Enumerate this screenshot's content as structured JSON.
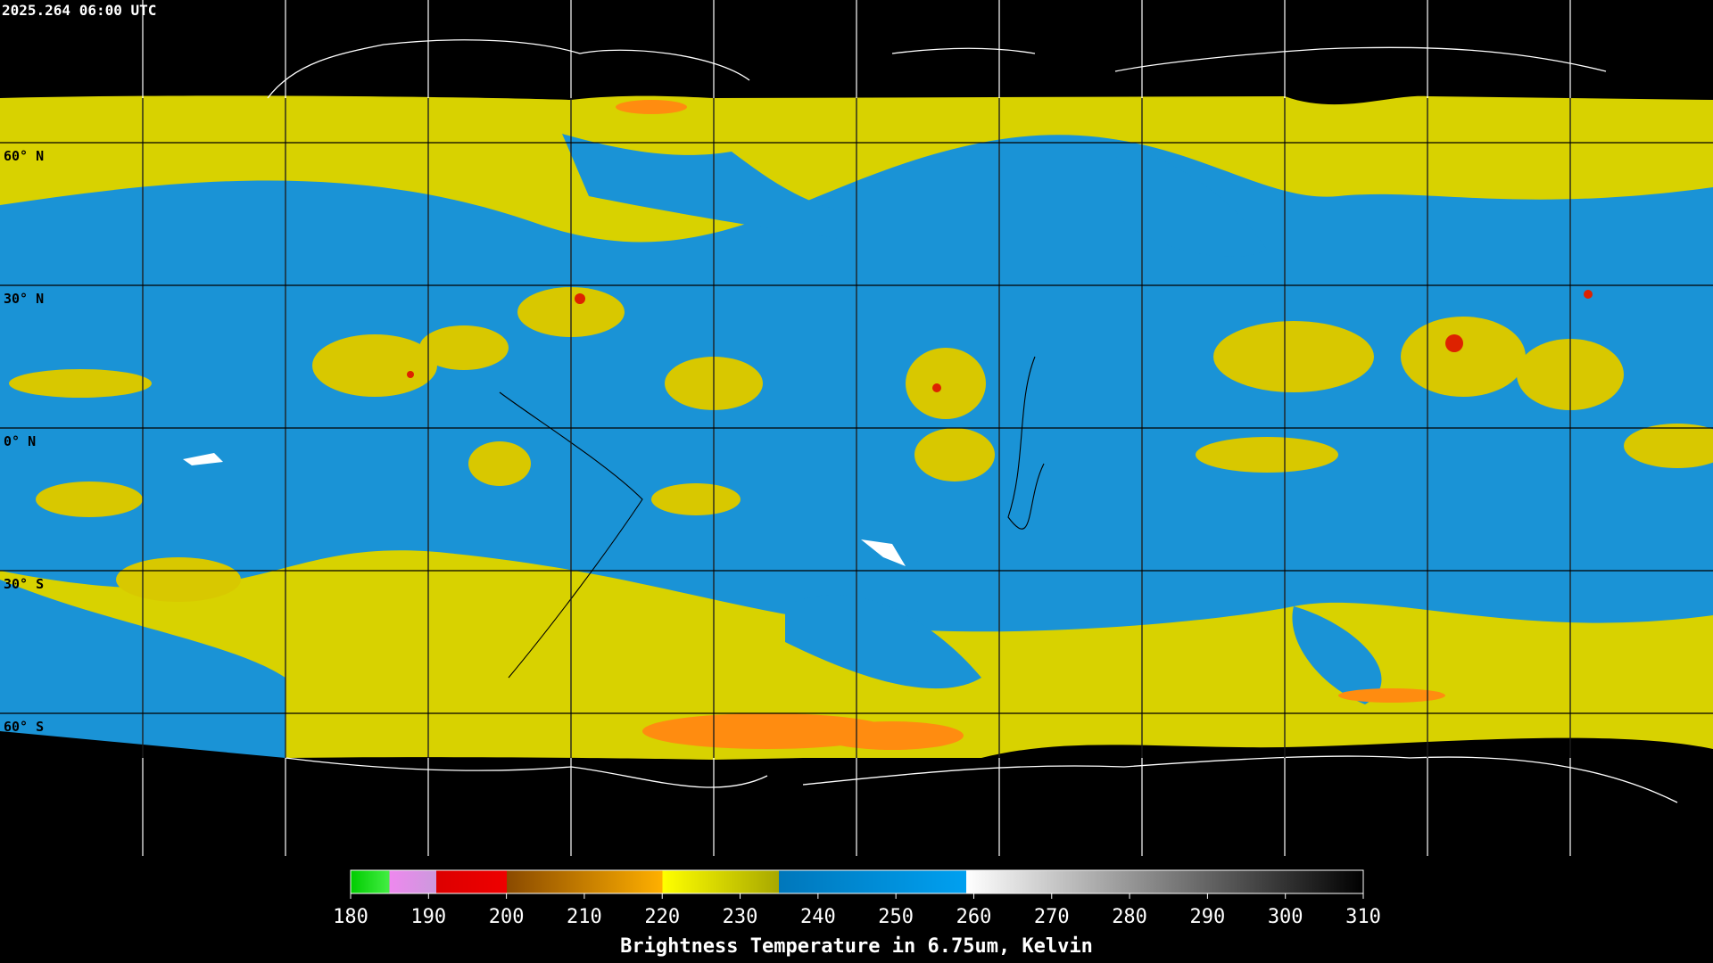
{
  "timestamp": "2025.264 06:00 UTC",
  "latitude_labels": [
    "60° N",
    "30° N",
    "0° N",
    "30° S",
    "60° S"
  ],
  "colorbar": {
    "range": [
      180,
      310
    ],
    "ticks": [
      180,
      190,
      200,
      210,
      220,
      230,
      240,
      250,
      260,
      270,
      280,
      290,
      300,
      310
    ],
    "label": "Brightness Temperature in 6.75um, Kelvin"
  }
}
